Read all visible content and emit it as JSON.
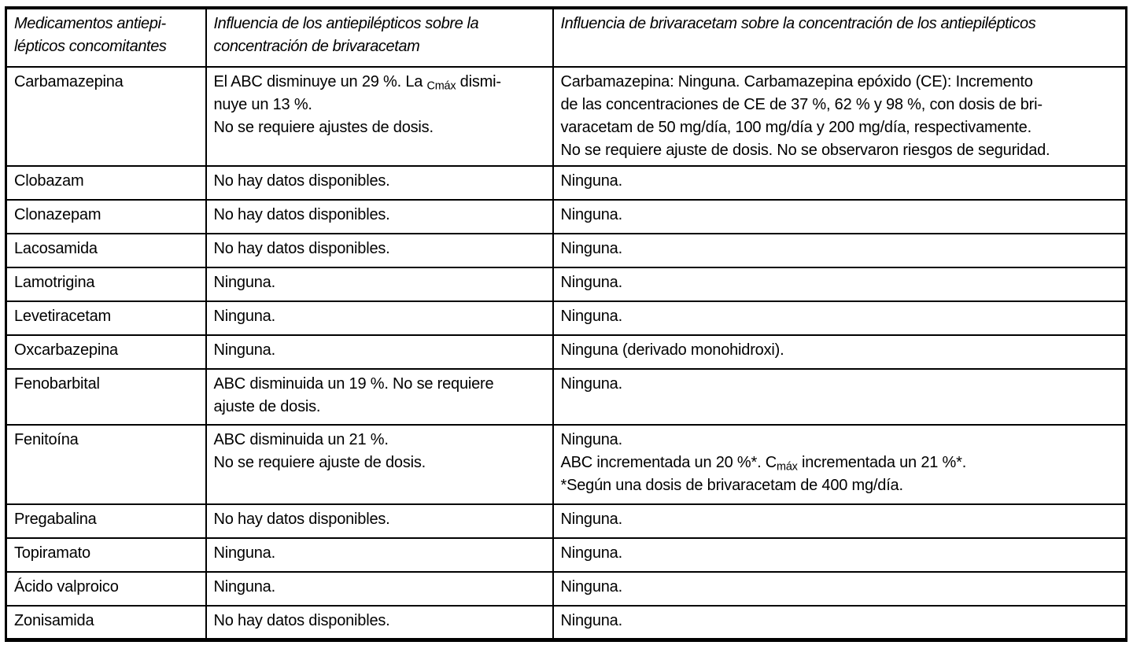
{
  "colors": {
    "background": "#ffffff",
    "border": "#000000",
    "text": "#000000"
  },
  "table": {
    "headers": [
      "Medicamentos antiepi-\nlépticos concomitantes",
      "Influencia de los antiepilépticos sobre la\nconcentración de brivaracetam",
      "Influencia de brivaracetam sobre la concentración de los antiepilépticos"
    ],
    "rows": [
      {
        "drug": "Carbamazepina",
        "effect_on_brivaracetam": "El ABC disminuye un 29 %. La {sub:Cmáx} dismi-\nnuye un 13 %.\nNo se requiere ajustes de dosis.",
        "effect_on_antiepileptics": "Carbamazepina: Ninguna. Carbamazepina epóxido (CE): Incremento\nde las concentraciones de CE de 37 %, 62 % y 98 %, con dosis de bri-\nvaracetam de 50 mg/día, 100 mg/día y 200 mg/día, respectivamente.\nNo se requiere ajuste de dosis. No se observaron riesgos de seguridad."
      },
      {
        "drug": "Clobazam",
        "effect_on_brivaracetam": "No hay datos disponibles.",
        "effect_on_antiepileptics": "Ninguna."
      },
      {
        "drug": "Clonazepam",
        "effect_on_brivaracetam": "No hay datos disponibles.",
        "effect_on_antiepileptics": "Ninguna."
      },
      {
        "drug": "Lacosamida",
        "effect_on_brivaracetam": "No hay datos disponibles.",
        "effect_on_antiepileptics": "Ninguna."
      },
      {
        "drug": "Lamotrigina",
        "effect_on_brivaracetam": "Ninguna.",
        "effect_on_antiepileptics": "Ninguna."
      },
      {
        "drug": "Levetiracetam",
        "effect_on_brivaracetam": "Ninguna.",
        "effect_on_antiepileptics": "Ninguna."
      },
      {
        "drug": "Oxcarbazepina",
        "effect_on_brivaracetam": "Ninguna.",
        "effect_on_antiepileptics": "Ninguna (derivado monohidroxi)."
      },
      {
        "drug": "Fenobarbital",
        "effect_on_brivaracetam": "ABC disminuida un 19 %. No se requiere\najuste de dosis.",
        "effect_on_antiepileptics": "Ninguna."
      },
      {
        "drug": "Fenitoína",
        "effect_on_brivaracetam": "ABC disminuida un 21 %.\nNo se requiere ajuste de dosis.",
        "effect_on_antiepileptics": "Ninguna.\nABC incrementada un 20 %*. C{sub:máx} incrementada un 21 %*.\n*Según una dosis de brivaracetam de 400 mg/día."
      },
      {
        "drug": "Pregabalina",
        "effect_on_brivaracetam": "No hay datos disponibles.",
        "effect_on_antiepileptics": "Ninguna."
      },
      {
        "drug": "Topiramato",
        "effect_on_brivaracetam": "Ninguna.",
        "effect_on_antiepileptics": "Ninguna."
      },
      {
        "drug": "Ácido valproico",
        "effect_on_brivaracetam": "Ninguna.",
        "effect_on_antiepileptics": "Ninguna."
      },
      {
        "drug": "Zonisamida",
        "effect_on_brivaracetam": "No hay datos disponibles.",
        "effect_on_antiepileptics": "Ninguna."
      }
    ]
  }
}
